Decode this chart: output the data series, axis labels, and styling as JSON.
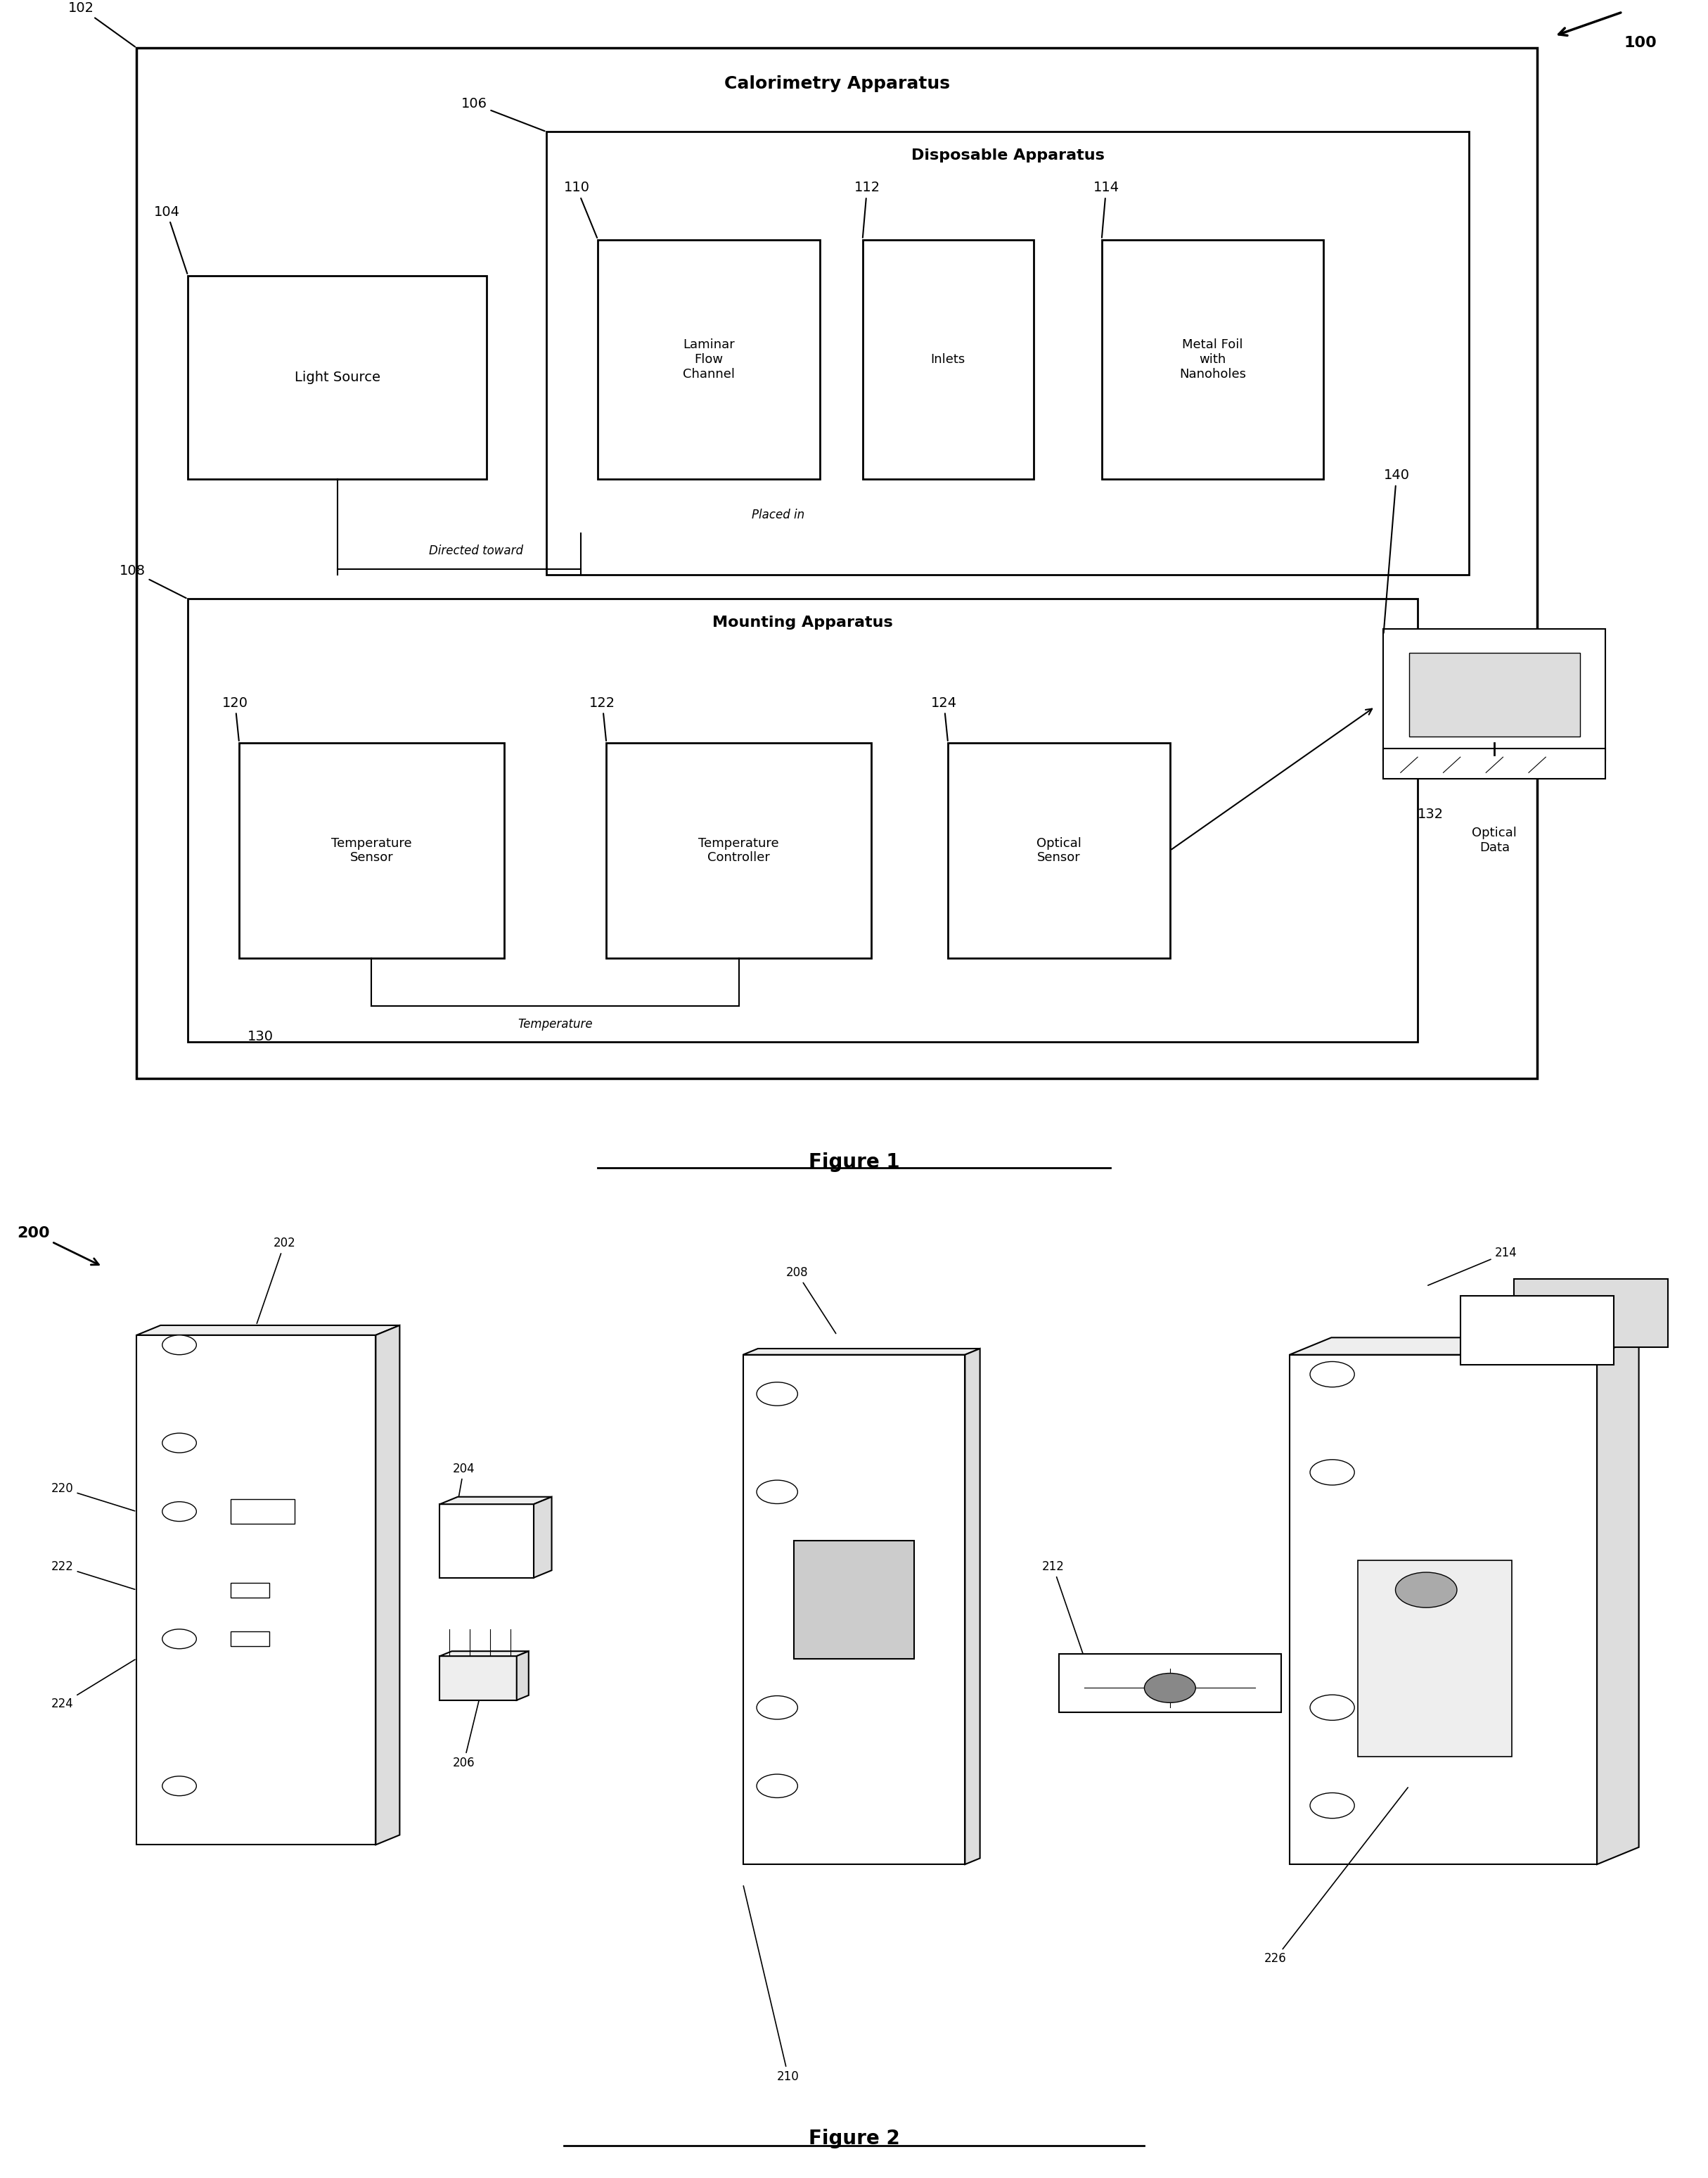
{
  "fig_width": 24.29,
  "fig_height": 30.96,
  "bg_color": "#ffffff",
  "fig1_title": "Figure 1",
  "fig2_title": "Figure 2",
  "label_100": "100",
  "label_102": "102",
  "label_104": "104",
  "label_106": "106",
  "label_108": "108",
  "label_110": "110",
  "label_112": "112",
  "label_114": "114",
  "label_120": "120",
  "label_122": "122",
  "label_124": "124",
  "label_130": "130",
  "label_132": "132",
  "label_140": "140",
  "label_200": "200",
  "label_202": "202",
  "label_204": "204",
  "label_206": "206",
  "label_208": "208",
  "label_210": "210",
  "label_212": "212",
  "label_214": "214",
  "label_220": "220",
  "label_222": "222",
  "label_224": "224",
  "label_226": "226",
  "text_calorimetry": "Calorimetry Apparatus",
  "text_disposable": "Disposable Apparatus",
  "text_mounting": "Mounting Apparatus",
  "text_light_source": "Light Source",
  "text_laminar": "Laminar\nFlow\nChannel",
  "text_inlets": "Inlets",
  "text_metal_foil": "Metal Foil\nwith\nNanoholes",
  "text_temp_sensor": "Temperature\nSensor",
  "text_temp_controller": "Temperature\nController",
  "text_optical_sensor": "Optical\nSensor",
  "text_optical_data": "Optical\nData",
  "text_directed_toward": "Directed toward",
  "text_placed_in": "Placed in",
  "text_temperature": "Temperature"
}
